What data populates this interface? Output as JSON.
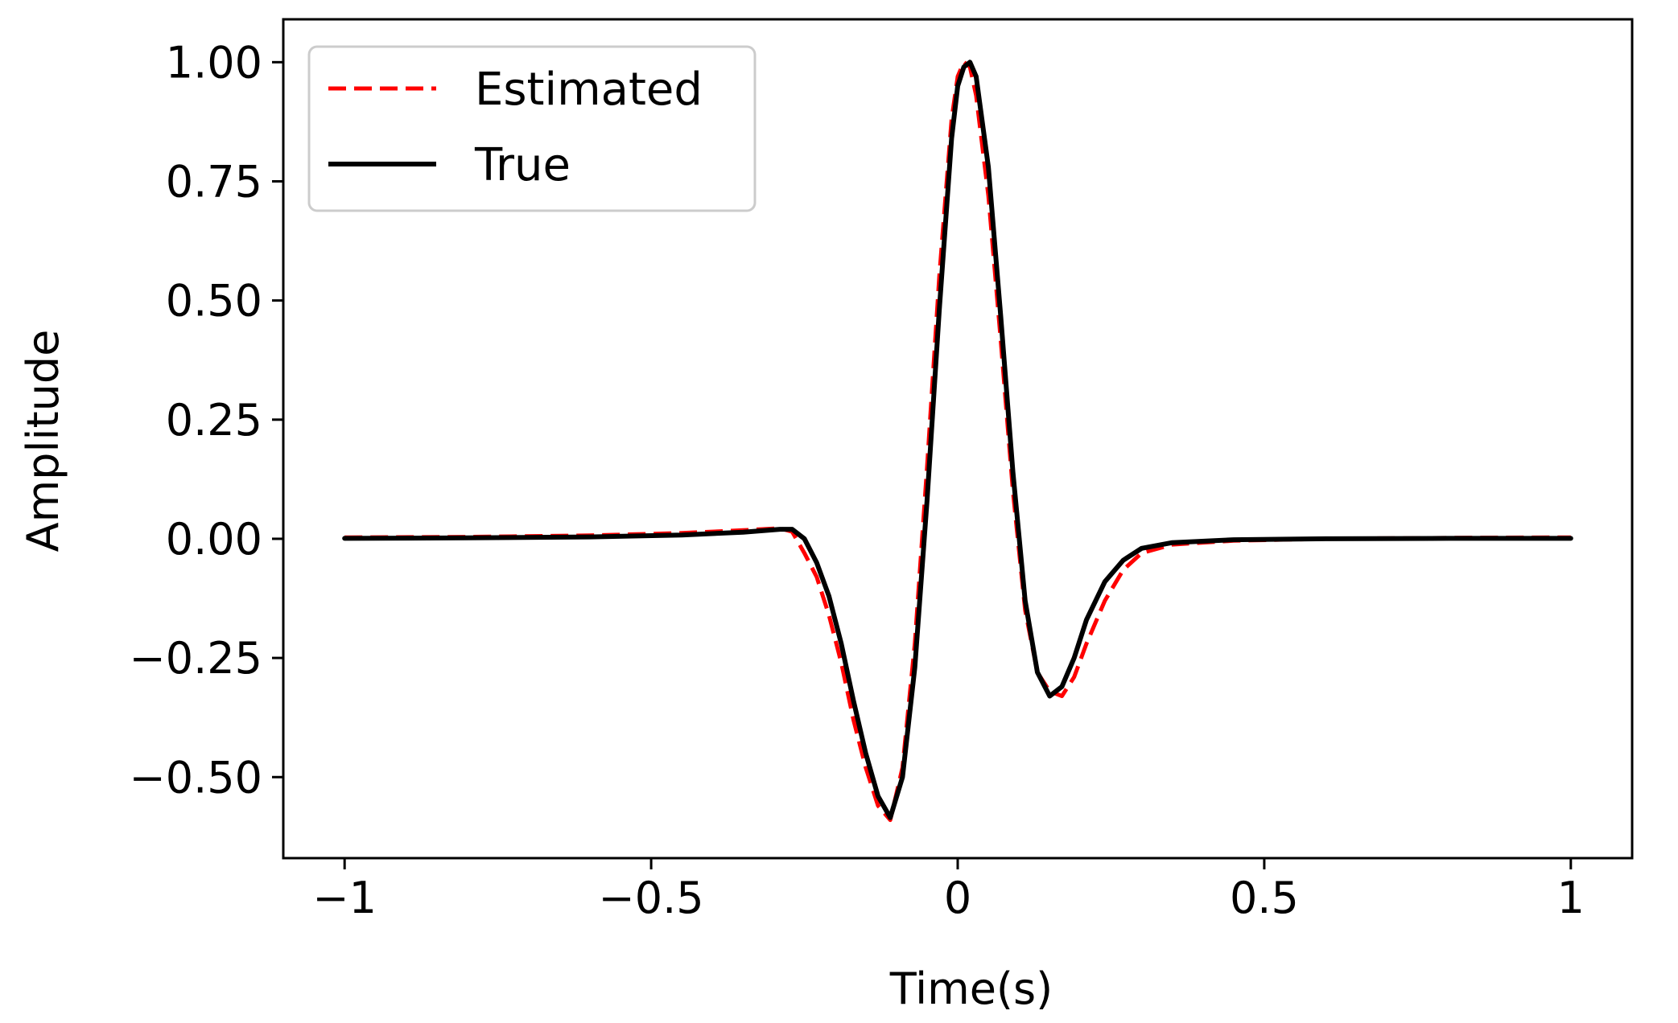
{
  "chart_data": {
    "type": "line",
    "title": "",
    "xlabel": "Time(s)",
    "ylabel": "Amplitude",
    "xlim": [
      -1.1,
      1.1
    ],
    "ylim": [
      -0.67,
      1.09
    ],
    "grid": false,
    "legend_position": "top-left",
    "x_ticks": [
      {
        "value": -1,
        "label": "−1"
      },
      {
        "value": -0.5,
        "label": "−0.5"
      },
      {
        "value": 0,
        "label": "0"
      },
      {
        "value": 0.5,
        "label": "0.5"
      },
      {
        "value": 1,
        "label": "1"
      }
    ],
    "y_ticks": [
      {
        "value": 1.0,
        "label": "1.00"
      },
      {
        "value": 0.75,
        "label": "0.75"
      },
      {
        "value": 0.5,
        "label": "0.50"
      },
      {
        "value": 0.25,
        "label": "0.25"
      },
      {
        "value": 0.0,
        "label": "0.00"
      },
      {
        "value": -0.25,
        "label": "−0.25"
      },
      {
        "value": -0.5,
        "label": "−0.50"
      }
    ],
    "series": [
      {
        "name": "Estimated",
        "color": "#ff0000",
        "style": "dashed",
        "x": [
          -1.0,
          -0.8,
          -0.6,
          -0.45,
          -0.35,
          -0.29,
          -0.27,
          -0.25,
          -0.23,
          -0.21,
          -0.19,
          -0.17,
          -0.15,
          -0.13,
          -0.11,
          -0.09,
          -0.07,
          -0.05,
          -0.03,
          -0.01,
          0.0,
          0.01,
          0.02,
          0.03,
          0.05,
          0.07,
          0.09,
          0.11,
          0.13,
          0.15,
          0.17,
          0.19,
          0.21,
          0.24,
          0.27,
          0.3,
          0.35,
          0.45,
          0.6,
          0.8,
          1.0
        ],
        "y": [
          0.003,
          0.004,
          0.007,
          0.012,
          0.018,
          0.022,
          0.015,
          -0.03,
          -0.08,
          -0.16,
          -0.26,
          -0.38,
          -0.48,
          -0.56,
          -0.59,
          -0.48,
          -0.22,
          0.15,
          0.55,
          0.88,
          0.97,
          1.0,
          0.99,
          0.93,
          0.72,
          0.42,
          0.1,
          -0.15,
          -0.28,
          -0.32,
          -0.33,
          -0.29,
          -0.22,
          -0.13,
          -0.065,
          -0.03,
          -0.012,
          -0.004,
          0.0,
          0.002,
          0.003
        ]
      },
      {
        "name": "True",
        "color": "#000000",
        "style": "solid",
        "x": [
          -1.0,
          -0.8,
          -0.6,
          -0.45,
          -0.35,
          -0.29,
          -0.27,
          -0.25,
          -0.23,
          -0.21,
          -0.19,
          -0.17,
          -0.15,
          -0.13,
          -0.11,
          -0.09,
          -0.07,
          -0.05,
          -0.03,
          -0.01,
          0.0,
          0.01,
          0.02,
          0.03,
          0.05,
          0.07,
          0.09,
          0.11,
          0.13,
          0.15,
          0.17,
          0.19,
          0.21,
          0.24,
          0.27,
          0.3,
          0.35,
          0.45,
          0.6,
          0.8,
          1.0
        ],
        "y": [
          0.001,
          0.002,
          0.004,
          0.008,
          0.014,
          0.02,
          0.02,
          0.0,
          -0.05,
          -0.12,
          -0.22,
          -0.34,
          -0.45,
          -0.54,
          -0.585,
          -0.5,
          -0.27,
          0.08,
          0.48,
          0.84,
          0.95,
          0.99,
          1.0,
          0.97,
          0.78,
          0.47,
          0.14,
          -0.13,
          -0.28,
          -0.33,
          -0.31,
          -0.25,
          -0.17,
          -0.09,
          -0.045,
          -0.02,
          -0.008,
          -0.002,
          0.0,
          0.001,
          0.001
        ]
      }
    ]
  }
}
